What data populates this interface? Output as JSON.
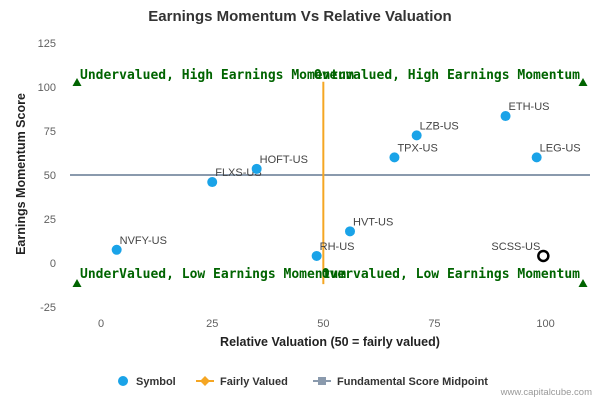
{
  "chart_data": {
    "type": "scatter",
    "title": "Earnings Momentum Vs Relative Valuation",
    "xlabel": "Relative Valuation (50 = fairly valued)",
    "ylabel": "Earnings Momentum Score",
    "xlim": [
      -7,
      110
    ],
    "ylim": [
      -25,
      125
    ],
    "x_ticks": [
      0,
      25,
      50,
      75,
      100
    ],
    "y_ticks": [
      -25,
      0,
      25,
      50,
      75,
      100,
      125
    ],
    "grid": false,
    "series": [
      {
        "name": "Symbol",
        "color": "#1aa3e8",
        "points": [
          {
            "label": "NVFY-US",
            "x": 3.5,
            "y": 7.5
          },
          {
            "label": "FLXS-US",
            "x": 25,
            "y": 46
          },
          {
            "label": "HOFT-US",
            "x": 35,
            "y": 53.5
          },
          {
            "label": "RH-US",
            "x": 48.5,
            "y": 4
          },
          {
            "label": "HVT-US",
            "x": 56,
            "y": 18
          },
          {
            "label": "TPX-US",
            "x": 66,
            "y": 60
          },
          {
            "label": "LZB-US",
            "x": 71,
            "y": 72.5
          },
          {
            "label": "ETH-US",
            "x": 91,
            "y": 83.5
          },
          {
            "label": "LEG-US",
            "x": 98,
            "y": 60
          },
          {
            "label": "SCSS-US",
            "x": 99.5,
            "y": 4,
            "highlighted": true
          }
        ]
      },
      {
        "name": "Fairly Valued",
        "color": "#f5a623",
        "x": 50,
        "y_range": [
          -12,
          103
        ]
      },
      {
        "name": "Fundamental Score Midpoint",
        "color": "#8a9aad",
        "y": 50,
        "x_range": [
          -7,
          110
        ]
      }
    ],
    "quadrant_labels": {
      "top_left": "Undervalued, High Earnings Momentum",
      "top_right": "Overvalued, High Earnings Momentum",
      "bottom_left": "UnderValued, Low Earnings Momentum",
      "bottom_right": "Overvalued, Low Earnings Momentum"
    },
    "quadrant_color": "#006400",
    "legend": [
      "Symbol",
      "Fairly Valued",
      "Fundamental Score Midpoint"
    ],
    "legend_position": "bottom"
  },
  "credit": "www.capitalcube.com"
}
